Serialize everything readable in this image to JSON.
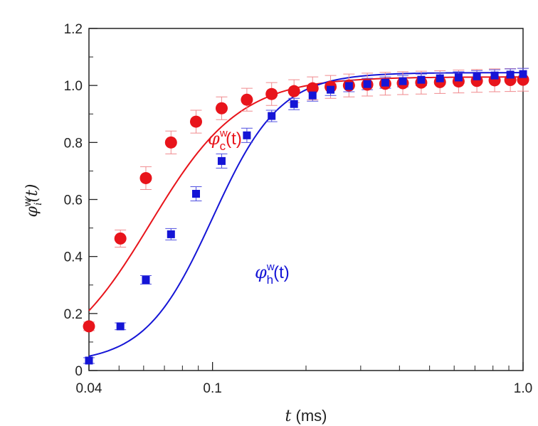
{
  "chart_data": {
    "type": "scatter",
    "x_scale": "log",
    "xlim": [
      0.04,
      1.0
    ],
    "ylim": [
      0,
      1.2
    ],
    "x_ticks": [
      {
        "value": 0.04,
        "label": "0.04"
      },
      {
        "value": 0.1,
        "label": "0.1"
      },
      {
        "value": 1.0,
        "label": "1.0"
      }
    ],
    "y_ticks": [
      {
        "value": 0,
        "label": "0"
      },
      {
        "value": 0.2,
        "label": "0.2"
      },
      {
        "value": 0.4,
        "label": "0.4"
      },
      {
        "value": 0.6,
        "label": "0.6"
      },
      {
        "value": 0.8,
        "label": "0.8"
      },
      {
        "value": 1.0,
        "label": "1.0"
      },
      {
        "value": 1.2,
        "label": "1.2"
      }
    ],
    "xlabel": {
      "var": "t",
      "unit": " (ms)"
    },
    "ylabel": {
      "sym": "φ",
      "sup": "w",
      "sub": "i",
      "arg": "(t)"
    },
    "series": [
      {
        "name": "c",
        "label": {
          "sym": "φ",
          "sup": "w",
          "sub": "c",
          "arg": "(t)"
        },
        "color": "#e8141b",
        "errcolor": "#f08a8e",
        "marker": "circle",
        "fit": {
          "base": 0.0,
          "amp": 1.03,
          "x0": 0.063,
          "n": 3.0
        },
        "points": [
          {
            "x": 0.04,
            "y": 0.155,
            "err": 0.015
          },
          {
            "x": 0.0505,
            "y": 0.463,
            "err": 0.03
          },
          {
            "x": 0.061,
            "y": 0.675,
            "err": 0.04
          },
          {
            "x": 0.0735,
            "y": 0.8,
            "err": 0.04
          },
          {
            "x": 0.0885,
            "y": 0.873,
            "err": 0.04
          },
          {
            "x": 0.107,
            "y": 0.92,
            "err": 0.04
          },
          {
            "x": 0.129,
            "y": 0.95,
            "err": 0.04
          },
          {
            "x": 0.155,
            "y": 0.97,
            "err": 0.04
          },
          {
            "x": 0.183,
            "y": 0.98,
            "err": 0.04
          },
          {
            "x": 0.21,
            "y": 0.99,
            "err": 0.04
          },
          {
            "x": 0.24,
            "y": 0.995,
            "err": 0.04
          },
          {
            "x": 0.275,
            "y": 1.0,
            "err": 0.04
          },
          {
            "x": 0.315,
            "y": 1.003,
            "err": 0.04
          },
          {
            "x": 0.36,
            "y": 1.006,
            "err": 0.04
          },
          {
            "x": 0.41,
            "y": 1.008,
            "err": 0.04
          },
          {
            "x": 0.47,
            "y": 1.01,
            "err": 0.04
          },
          {
            "x": 0.54,
            "y": 1.012,
            "err": 0.04
          },
          {
            "x": 0.62,
            "y": 1.014,
            "err": 0.04
          },
          {
            "x": 0.71,
            "y": 1.016,
            "err": 0.04
          },
          {
            "x": 0.81,
            "y": 1.018,
            "err": 0.04
          },
          {
            "x": 0.91,
            "y": 1.019,
            "err": 0.04
          },
          {
            "x": 1.0,
            "y": 1.02,
            "err": 0.04
          }
        ]
      },
      {
        "name": "h",
        "label": {
          "sym": "φ",
          "sup": "w",
          "sub": "h",
          "arg": "(t)"
        },
        "color": "#1515d6",
        "errcolor": "#4f4fe0",
        "marker": "square",
        "fit": {
          "base": 0.025,
          "amp": 1.02,
          "x0": 0.1,
          "n": 4.0
        },
        "points": [
          {
            "x": 0.04,
            "y": 0.035,
            "err": 0.01
          },
          {
            "x": 0.0505,
            "y": 0.155,
            "err": 0.012
          },
          {
            "x": 0.061,
            "y": 0.318,
            "err": 0.015
          },
          {
            "x": 0.0735,
            "y": 0.478,
            "err": 0.02
          },
          {
            "x": 0.0885,
            "y": 0.62,
            "err": 0.025
          },
          {
            "x": 0.107,
            "y": 0.735,
            "err": 0.025
          },
          {
            "x": 0.129,
            "y": 0.825,
            "err": 0.025
          },
          {
            "x": 0.155,
            "y": 0.893,
            "err": 0.02
          },
          {
            "x": 0.183,
            "y": 0.935,
            "err": 0.02
          },
          {
            "x": 0.21,
            "y": 0.965,
            "err": 0.02
          },
          {
            "x": 0.24,
            "y": 0.985,
            "err": 0.02
          },
          {
            "x": 0.275,
            "y": 0.998,
            "err": 0.02
          },
          {
            "x": 0.315,
            "y": 1.005,
            "err": 0.02
          },
          {
            "x": 0.36,
            "y": 1.01,
            "err": 0.02
          },
          {
            "x": 0.41,
            "y": 1.015,
            "err": 0.02
          },
          {
            "x": 0.47,
            "y": 1.02,
            "err": 0.02
          },
          {
            "x": 0.54,
            "y": 1.025,
            "err": 0.02
          },
          {
            "x": 0.62,
            "y": 1.028,
            "err": 0.02
          },
          {
            "x": 0.71,
            "y": 1.032,
            "err": 0.02
          },
          {
            "x": 0.81,
            "y": 1.035,
            "err": 0.02
          },
          {
            "x": 0.91,
            "y": 1.038,
            "err": 0.02
          },
          {
            "x": 1.0,
            "y": 1.04,
            "err": 0.02
          }
        ]
      }
    ]
  }
}
